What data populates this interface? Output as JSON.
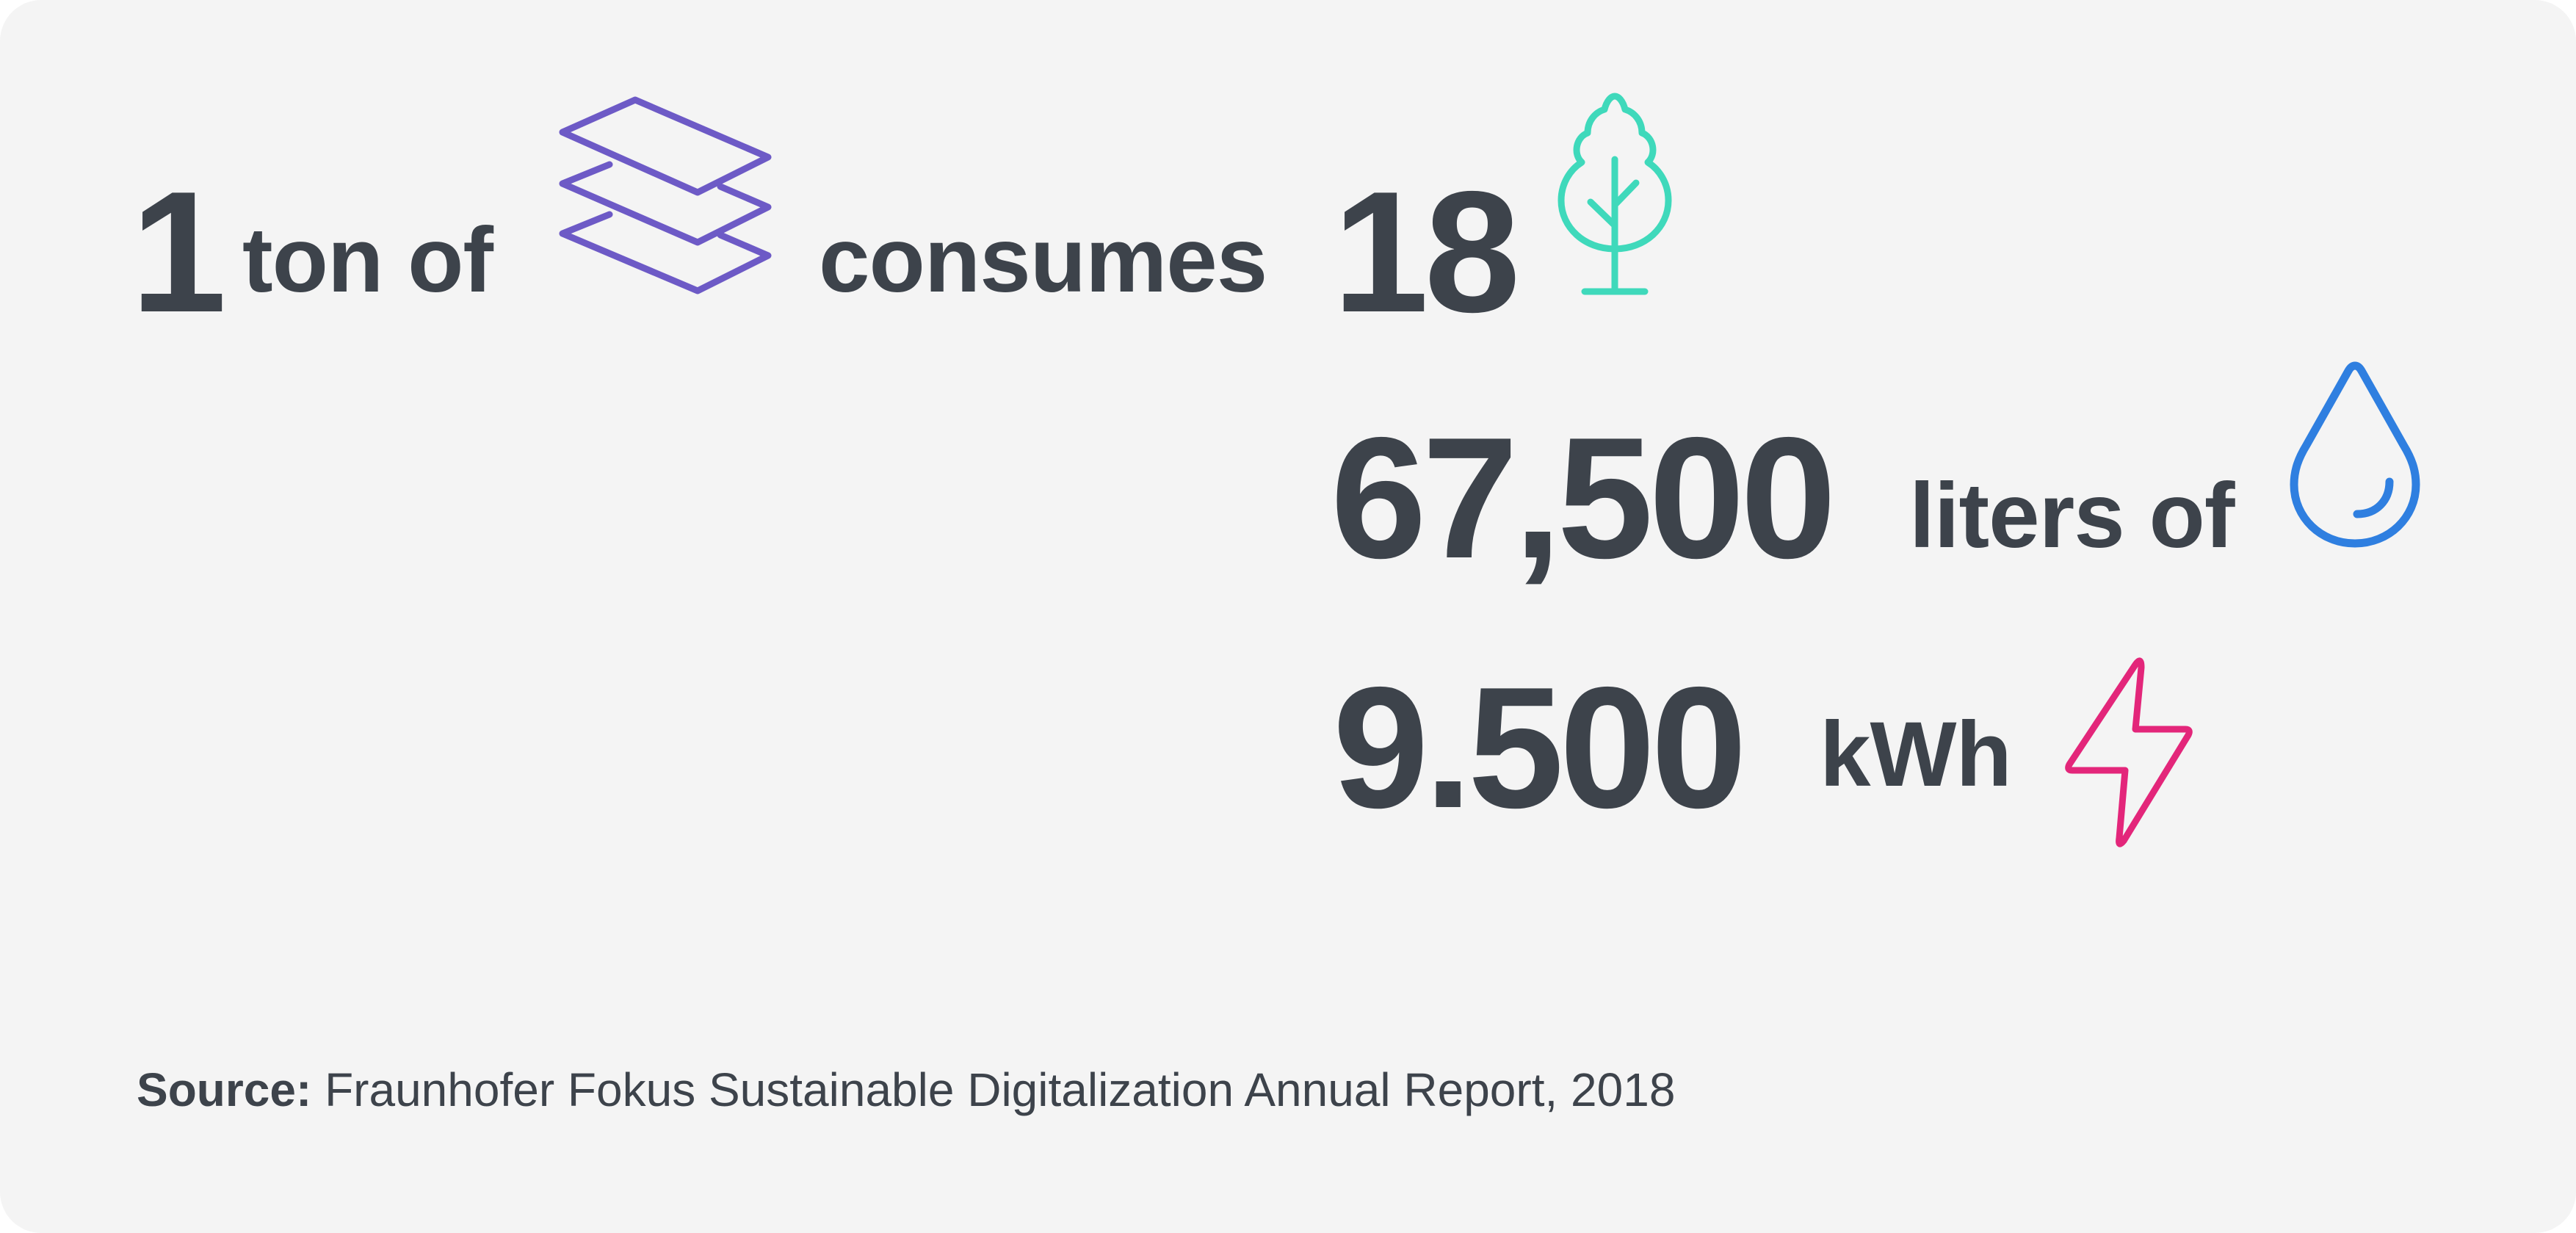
{
  "row1": {
    "quantity": "1",
    "unit_text": "ton of",
    "paper_icon": "paper-stack-icon",
    "verb": "consumes",
    "trees_value": "18",
    "tree_icon": "tree-icon"
  },
  "row2": {
    "water_value": "67,500",
    "water_unit": "liters of",
    "water_icon": "water-drop-icon"
  },
  "row3": {
    "energy_value": "9.500",
    "energy_unit": "kWh",
    "energy_icon": "lightning-bolt-icon"
  },
  "source": {
    "label": "Source:",
    "text": " Fraunhofer Fokus Sustainable Digitalization Annual Report, 2018"
  },
  "colors": {
    "background": "#f4f4f4",
    "text": "#3d434b",
    "paper": "#6d5ac6",
    "tree": "#3fd9bb",
    "water": "#2f7fe0",
    "energy": "#e3267a"
  }
}
